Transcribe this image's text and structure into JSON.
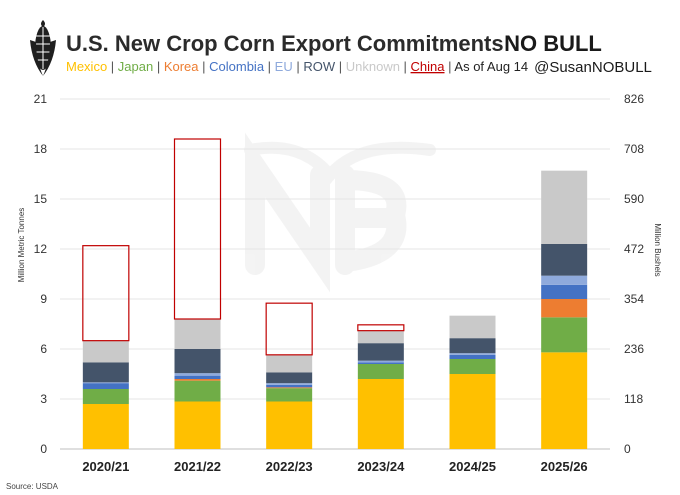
{
  "header": {
    "title": "U.S. New Crop Corn Export Commitments",
    "brand": "NO BULL",
    "handle": "@SusanNOBULL"
  },
  "legend": {
    "items": [
      {
        "label": "Mexico",
        "color": "#ffc000"
      },
      {
        "label": "Japan",
        "color": "#70ad47"
      },
      {
        "label": "Korea",
        "color": "#ed7d31"
      },
      {
        "label": "Colombia",
        "color": "#4472c4"
      },
      {
        "label": "EU",
        "color": "#8faadc"
      },
      {
        "label": "ROW",
        "color": "#44546a"
      },
      {
        "label": "Unknown",
        "color": "#c9c9c9"
      },
      {
        "label": "China",
        "color": "#c00000"
      }
    ],
    "separator": "|",
    "asof": "As of Aug 14"
  },
  "source": "Source: USDA",
  "chart_data": {
    "type": "bar",
    "stacked": true,
    "categories": [
      "2020/21",
      "2021/22",
      "2022/23",
      "2023/24",
      "2024/25",
      "2025/26"
    ],
    "series": [
      {
        "name": "Mexico",
        "color": "#ffc000",
        "values": [
          2.7,
          2.85,
          2.85,
          4.2,
          4.5,
          5.8
        ]
      },
      {
        "name": "Japan",
        "color": "#70ad47",
        "values": [
          0.9,
          1.25,
          0.8,
          0.9,
          0.9,
          2.1
        ]
      },
      {
        "name": "Korea",
        "color": "#ed7d31",
        "values": [
          0.0,
          0.1,
          0.05,
          0.0,
          0.0,
          1.1
        ]
      },
      {
        "name": "Colombia",
        "color": "#4472c4",
        "values": [
          0.35,
          0.2,
          0.15,
          0.1,
          0.25,
          0.85
        ]
      },
      {
        "name": "EU",
        "color": "#8faadc",
        "values": [
          0.05,
          0.15,
          0.1,
          0.1,
          0.1,
          0.55
        ]
      },
      {
        "name": "ROW",
        "color": "#44546a",
        "values": [
          1.2,
          1.45,
          0.65,
          1.05,
          0.9,
          1.9
        ]
      },
      {
        "name": "Unknown",
        "color": "#c9c9c9",
        "values": [
          1.3,
          1.8,
          1.05,
          0.75,
          1.35,
          4.4
        ]
      },
      {
        "name": "China",
        "color": "#c00000",
        "outline": true,
        "values": [
          5.7,
          10.8,
          3.1,
          0.35,
          0.0,
          0.0
        ]
      }
    ],
    "ylabel": "Million Metric Tonnes",
    "y2label": "Million Bushels",
    "ylim": [
      0,
      21
    ],
    "yticks": [
      0,
      3,
      6,
      9,
      12,
      15,
      18,
      21
    ],
    "y2ticks": [
      0,
      118,
      236,
      354,
      472,
      590,
      708,
      826
    ],
    "grid": true,
    "title": "U.S. New Crop Corn Export Commitments"
  }
}
